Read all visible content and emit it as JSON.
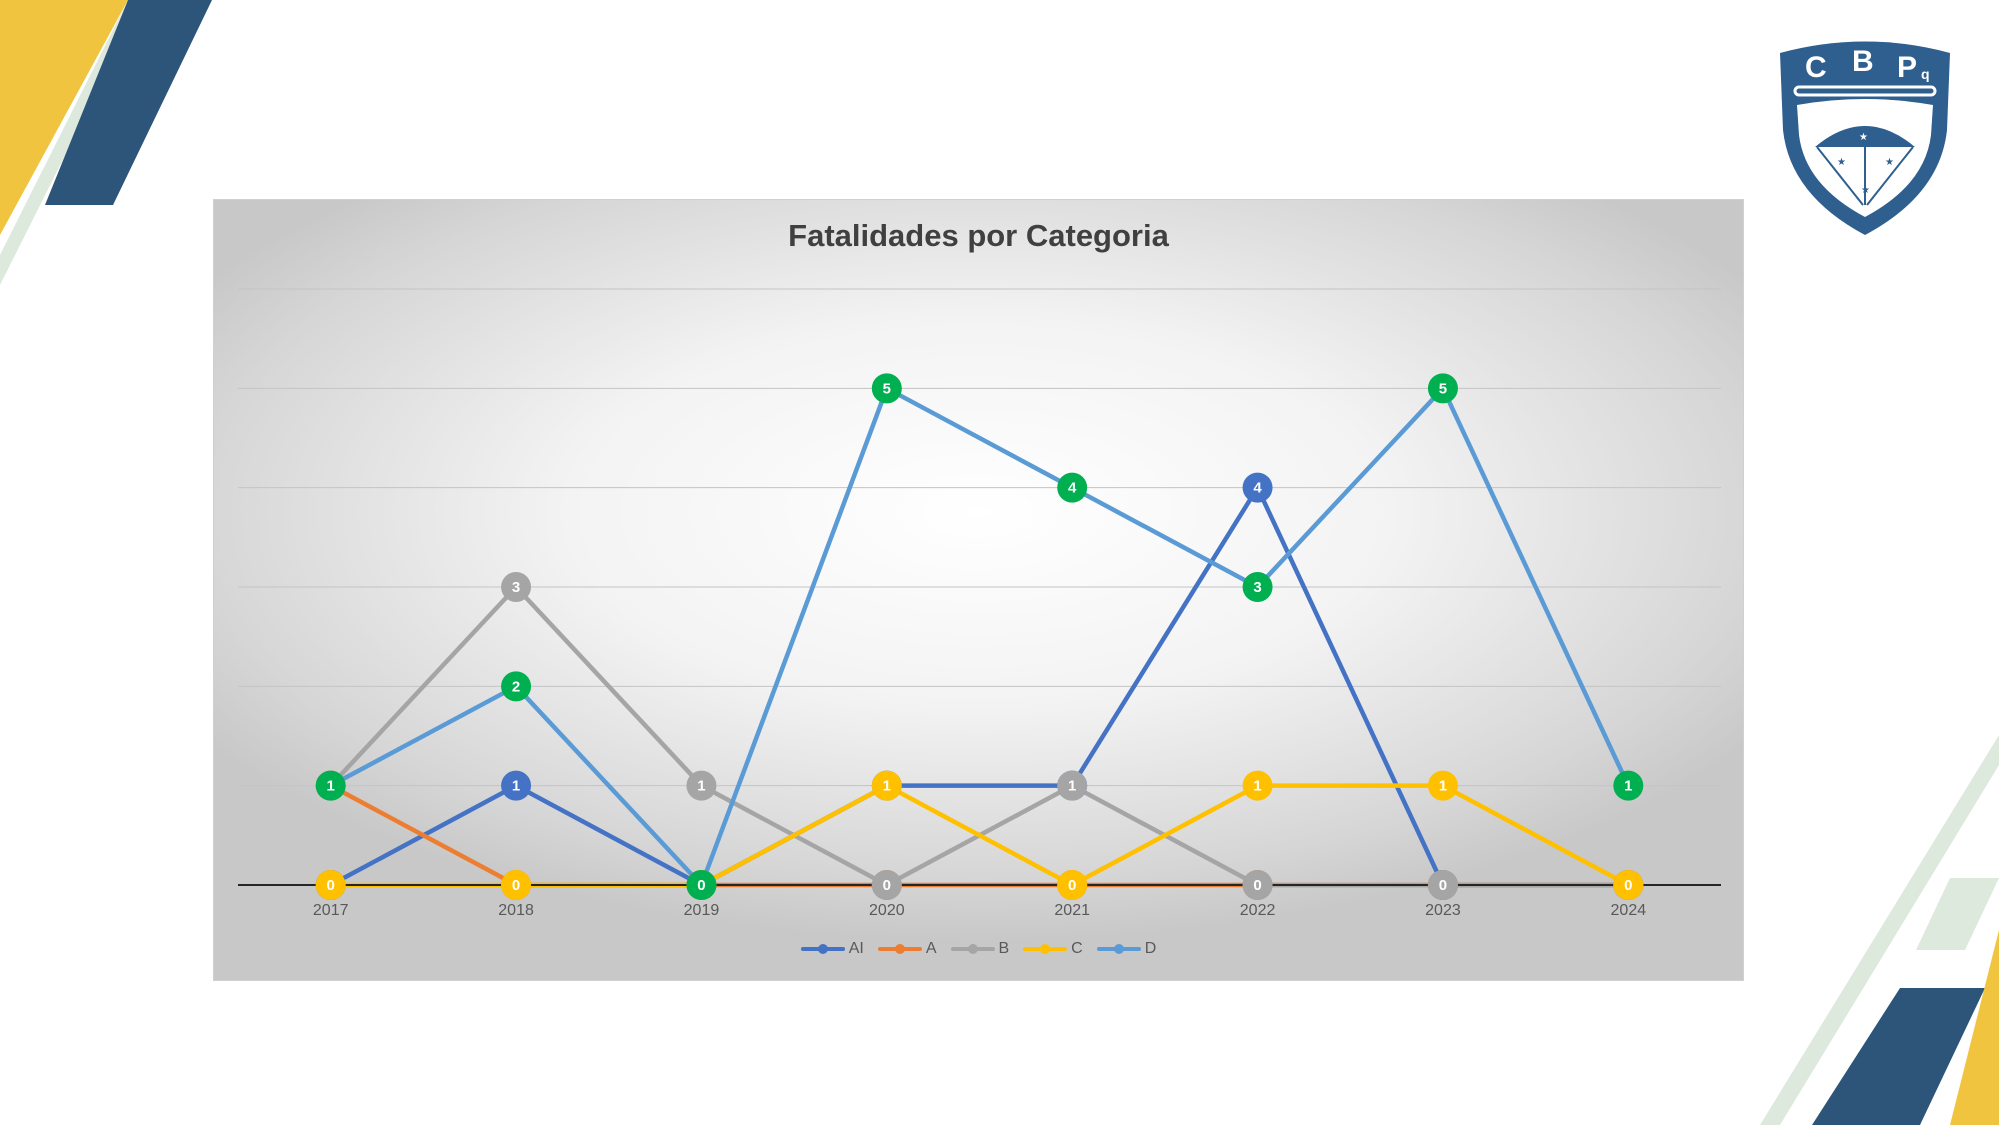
{
  "colors": {
    "yellow": "#F0C43E",
    "navy": "#2D5479",
    "pale_green": "#DDE9DD",
    "logo_blue": "#2E5F8F"
  },
  "logo": {
    "text": "CBPq"
  },
  "chart_data": {
    "type": "line",
    "title": "Fatalidades por Categoria",
    "xlabel": "",
    "ylabel": "",
    "categories": [
      "2017",
      "2018",
      "2019",
      "2020",
      "2021",
      "2022",
      "2023",
      "2024"
    ],
    "ylim": [
      0,
      6
    ],
    "grid": true,
    "data_labels": true,
    "legend": "bottom",
    "series": [
      {
        "name": "AI",
        "color": "#4472C4",
        "marker_color": "#4472C4",
        "values": [
          0,
          1,
          0,
          1,
          1,
          4,
          0,
          0
        ]
      },
      {
        "name": "A",
        "color": "#ED7D31",
        "marker_color": "#ED7D31",
        "values": [
          1,
          0,
          0,
          0,
          0,
          0,
          0,
          0
        ]
      },
      {
        "name": "B",
        "color": "#A5A5A5",
        "marker_color": "#A5A5A5",
        "values": [
          1,
          3,
          1,
          0,
          1,
          0,
          0,
          0
        ]
      },
      {
        "name": "C",
        "color": "#FFC000",
        "marker_color": "#FFC000",
        "values": [
          0,
          0,
          0,
          1,
          0,
          1,
          1,
          0
        ]
      },
      {
        "name": "D",
        "color": "#5B9BD5",
        "marker_color": "#00B050",
        "values": [
          1,
          2,
          0,
          5,
          4,
          3,
          5,
          1
        ]
      }
    ]
  }
}
